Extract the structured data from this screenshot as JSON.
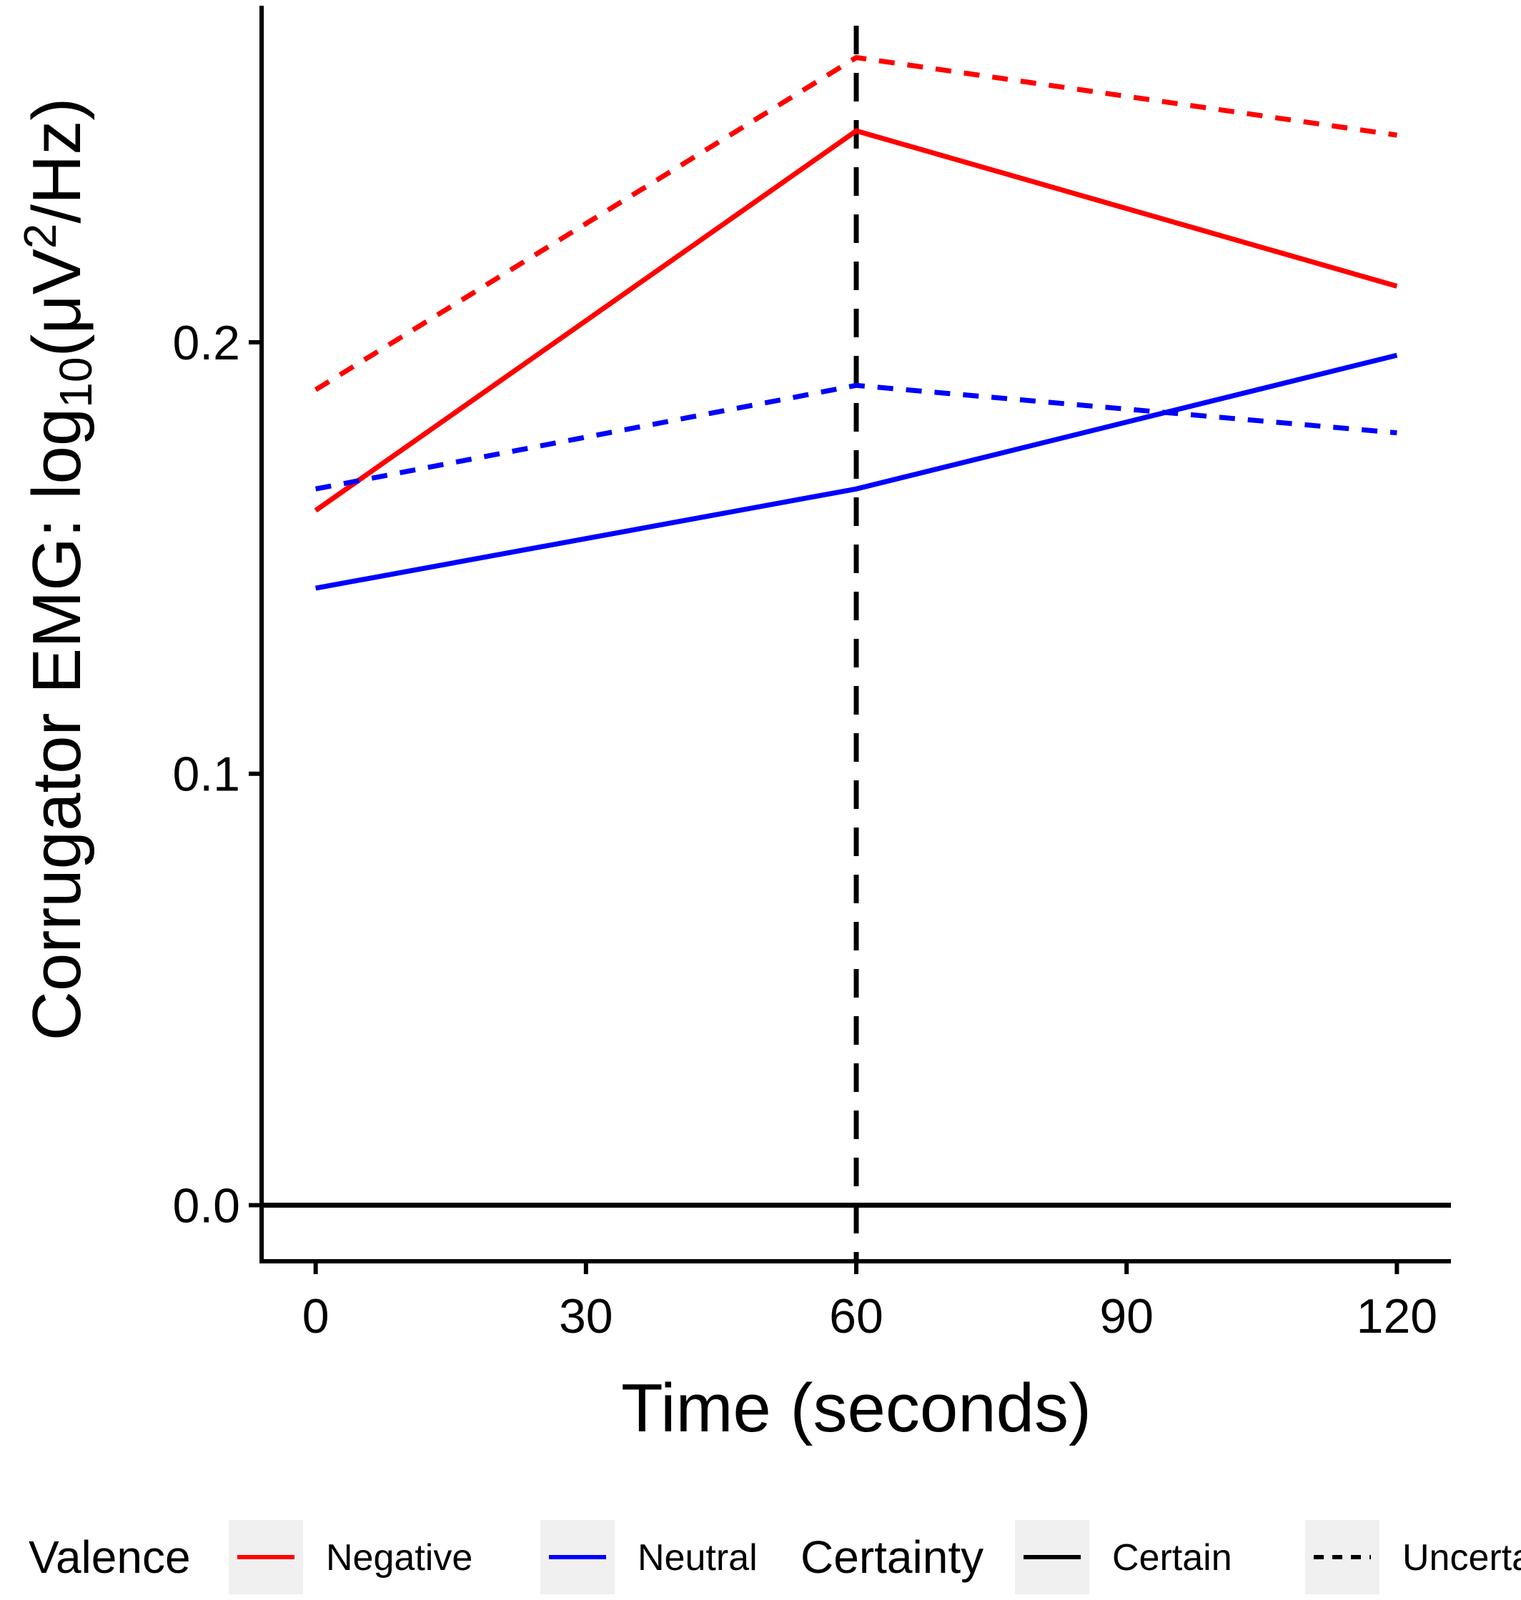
{
  "chart_data": {
    "type": "line",
    "title": "",
    "xlabel": "Time (seconds)",
    "ylabel": "Corrugator EMG: log10(μV2/Hz)",
    "ylabel_parts": {
      "main": "Corrugator EMG: log",
      "subscript": "10",
      "open": "(μV",
      "superscript": "2",
      "close": "/Hz)"
    },
    "x": [
      0,
      60,
      120
    ],
    "x_ticks": [
      0,
      30,
      60,
      90,
      120
    ],
    "x_tick_labels": [
      "0",
      "30",
      "60",
      "90",
      "120"
    ],
    "y_ticks": [
      0.0,
      0.1,
      0.2
    ],
    "y_tick_labels": [
      "0.0",
      "0.1",
      "0.2"
    ],
    "xlim": [
      -6,
      126
    ],
    "ylim": [
      -0.013,
      0.278
    ],
    "reference_lines": [
      {
        "orientation": "horizontal",
        "value": 0.0,
        "style": "solid"
      },
      {
        "orientation": "vertical",
        "value": 60,
        "style": "dashed"
      }
    ],
    "series": [
      {
        "valence": "Negative",
        "certainty": "Certain",
        "color": "#ff0000",
        "dash": "solid",
        "values": [
          0.161,
          0.249,
          0.213
        ]
      },
      {
        "valence": "Negative",
        "certainty": "Uncertain",
        "color": "#ff0000",
        "dash": "dashed",
        "values": [
          0.189,
          0.266,
          0.248
        ]
      },
      {
        "valence": "Neutral",
        "certainty": "Certain",
        "color": "#0000ff",
        "dash": "solid",
        "values": [
          0.143,
          0.166,
          0.197
        ]
      },
      {
        "valence": "Neutral",
        "certainty": "Uncertain",
        "color": "#0000ff",
        "dash": "dashed",
        "values": [
          0.166,
          0.19,
          0.179
        ]
      }
    ],
    "legend": {
      "placement": "bottom",
      "groups": [
        {
          "title": "Valence",
          "items": [
            {
              "label": "Negative",
              "color": "#ff0000",
              "dash": "solid"
            },
            {
              "label": "Neutral",
              "color": "#0000ff",
              "dash": "solid"
            }
          ]
        },
        {
          "title": "Certainty",
          "items": [
            {
              "label": "Certain",
              "color": "#000000",
              "dash": "solid"
            },
            {
              "label": "Uncertain",
              "color": "#000000",
              "dash": "dashed"
            }
          ]
        }
      ]
    },
    "grid": false
  }
}
